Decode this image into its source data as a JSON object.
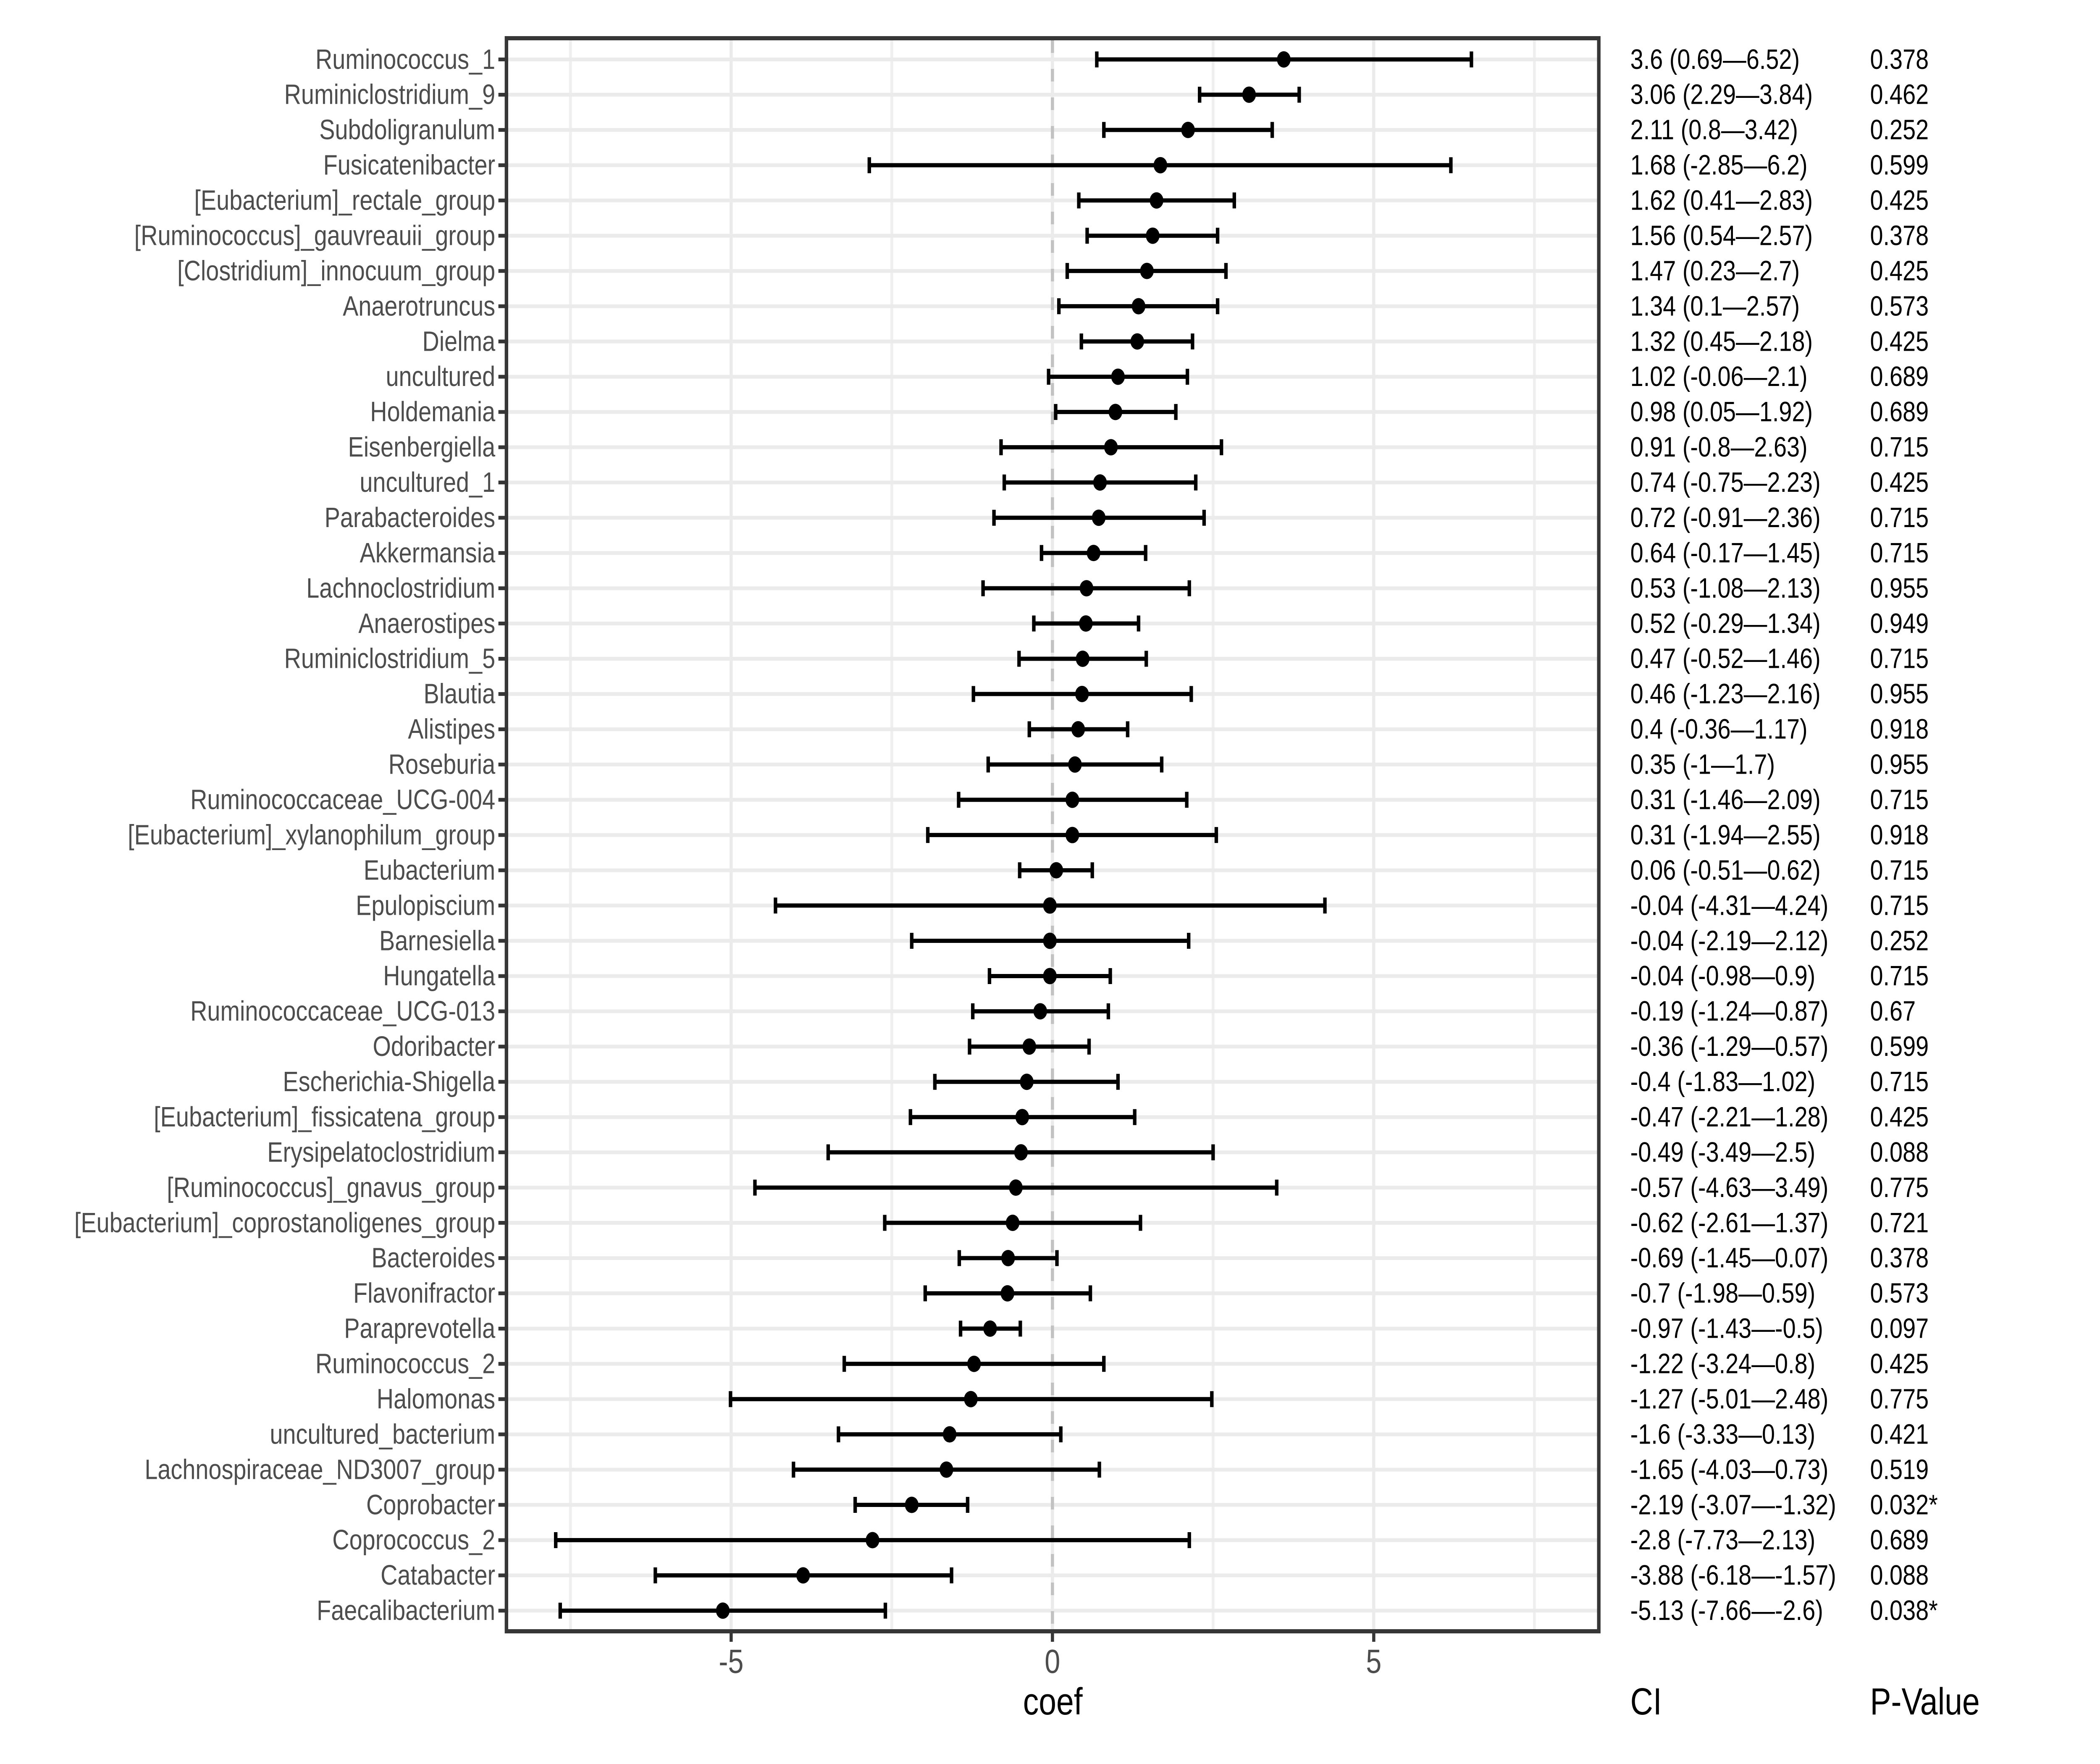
{
  "chart_data": {
    "type": "scatter",
    "variant": "forest-plot",
    "title": "",
    "xlabel": "coef",
    "ci_header": "CI",
    "p_header": "P-Value",
    "x_ticks": [
      -5,
      0,
      5
    ],
    "x_minor_ticks": [
      -7.5,
      -2.5,
      2.5,
      7.5
    ],
    "xlim": [
      -8.51,
      8.51
    ],
    "zero_line": 0,
    "grid": "on",
    "rows": [
      {
        "label": "Ruminococcus_1",
        "coef": 3.6,
        "ci_low": 0.69,
        "ci_high": 6.52,
        "ci_text": "3.6 (0.69—6.52)",
        "p_text": "0.378"
      },
      {
        "label": "Ruminiclostridium_9",
        "coef": 3.06,
        "ci_low": 2.29,
        "ci_high": 3.84,
        "ci_text": "3.06 (2.29—3.84)",
        "p_text": "0.462"
      },
      {
        "label": "Subdoligranulum",
        "coef": 2.11,
        "ci_low": 0.8,
        "ci_high": 3.42,
        "ci_text": "2.11 (0.8—3.42)",
        "p_text": "0.252"
      },
      {
        "label": "Fusicatenibacter",
        "coef": 1.68,
        "ci_low": -2.85,
        "ci_high": 6.2,
        "ci_text": "1.68 (-2.85—6.2)",
        "p_text": "0.599"
      },
      {
        "label": "[Eubacterium]_rectale_group",
        "coef": 1.62,
        "ci_low": 0.41,
        "ci_high": 2.83,
        "ci_text": "1.62 (0.41—2.83)",
        "p_text": "0.425"
      },
      {
        "label": "[Ruminococcus]_gauvreauii_group",
        "coef": 1.56,
        "ci_low": 0.54,
        "ci_high": 2.57,
        "ci_text": "1.56 (0.54—2.57)",
        "p_text": "0.378"
      },
      {
        "label": "[Clostridium]_innocuum_group",
        "coef": 1.47,
        "ci_low": 0.23,
        "ci_high": 2.7,
        "ci_text": "1.47 (0.23—2.7)",
        "p_text": "0.425"
      },
      {
        "label": "Anaerotruncus",
        "coef": 1.34,
        "ci_low": 0.1,
        "ci_high": 2.57,
        "ci_text": "1.34 (0.1—2.57)",
        "p_text": "0.573"
      },
      {
        "label": "Dielma",
        "coef": 1.32,
        "ci_low": 0.45,
        "ci_high": 2.18,
        "ci_text": "1.32 (0.45—2.18)",
        "p_text": "0.425"
      },
      {
        "label": "uncultured",
        "coef": 1.02,
        "ci_low": -0.06,
        "ci_high": 2.1,
        "ci_text": "1.02 (-0.06—2.1)",
        "p_text": "0.689"
      },
      {
        "label": "Holdemania",
        "coef": 0.98,
        "ci_low": 0.05,
        "ci_high": 1.92,
        "ci_text": "0.98 (0.05—1.92)",
        "p_text": "0.689"
      },
      {
        "label": "Eisenbergiella",
        "coef": 0.91,
        "ci_low": -0.8,
        "ci_high": 2.63,
        "ci_text": "0.91 (-0.8—2.63)",
        "p_text": "0.715"
      },
      {
        "label": "uncultured_1",
        "coef": 0.74,
        "ci_low": -0.75,
        "ci_high": 2.23,
        "ci_text": "0.74 (-0.75—2.23)",
        "p_text": "0.425"
      },
      {
        "label": "Parabacteroides",
        "coef": 0.72,
        "ci_low": -0.91,
        "ci_high": 2.36,
        "ci_text": "0.72 (-0.91—2.36)",
        "p_text": "0.715"
      },
      {
        "label": "Akkermansia",
        "coef": 0.64,
        "ci_low": -0.17,
        "ci_high": 1.45,
        "ci_text": "0.64 (-0.17—1.45)",
        "p_text": "0.715"
      },
      {
        "label": "Lachnoclostridium",
        "coef": 0.53,
        "ci_low": -1.08,
        "ci_high": 2.13,
        "ci_text": "0.53 (-1.08—2.13)",
        "p_text": "0.955"
      },
      {
        "label": "Anaerostipes",
        "coef": 0.52,
        "ci_low": -0.29,
        "ci_high": 1.34,
        "ci_text": "0.52 (-0.29—1.34)",
        "p_text": "0.949"
      },
      {
        "label": "Ruminiclostridium_5",
        "coef": 0.47,
        "ci_low": -0.52,
        "ci_high": 1.46,
        "ci_text": "0.47 (-0.52—1.46)",
        "p_text": "0.715"
      },
      {
        "label": "Blautia",
        "coef": 0.46,
        "ci_low": -1.23,
        "ci_high": 2.16,
        "ci_text": "0.46 (-1.23—2.16)",
        "p_text": "0.955"
      },
      {
        "label": "Alistipes",
        "coef": 0.4,
        "ci_low": -0.36,
        "ci_high": 1.17,
        "ci_text": "0.4 (-0.36—1.17)",
        "p_text": "0.918"
      },
      {
        "label": "Roseburia",
        "coef": 0.35,
        "ci_low": -1,
        "ci_high": 1.7,
        "ci_text": "0.35 (-1—1.7)",
        "p_text": "0.955"
      },
      {
        "label": "Ruminococcaceae_UCG-004",
        "coef": 0.31,
        "ci_low": -1.46,
        "ci_high": 2.09,
        "ci_text": "0.31 (-1.46—2.09)",
        "p_text": "0.715"
      },
      {
        "label": "[Eubacterium]_xylanophilum_group",
        "coef": 0.31,
        "ci_low": -1.94,
        "ci_high": 2.55,
        "ci_text": "0.31 (-1.94—2.55)",
        "p_text": "0.918"
      },
      {
        "label": "Eubacterium",
        "coef": 0.06,
        "ci_low": -0.51,
        "ci_high": 0.62,
        "ci_text": "0.06 (-0.51—0.62)",
        "p_text": "0.715"
      },
      {
        "label": "Epulopiscium",
        "coef": -0.04,
        "ci_low": -4.31,
        "ci_high": 4.24,
        "ci_text": "-0.04 (-4.31—4.24)",
        "p_text": "0.715"
      },
      {
        "label": "Barnesiella",
        "coef": -0.04,
        "ci_low": -2.19,
        "ci_high": 2.12,
        "ci_text": "-0.04 (-2.19—2.12)",
        "p_text": "0.252"
      },
      {
        "label": "Hungatella",
        "coef": -0.04,
        "ci_low": -0.98,
        "ci_high": 0.9,
        "ci_text": "-0.04 (-0.98—0.9)",
        "p_text": "0.715"
      },
      {
        "label": "Ruminococcaceae_UCG-013",
        "coef": -0.19,
        "ci_low": -1.24,
        "ci_high": 0.87,
        "ci_text": "-0.19 (-1.24—0.87)",
        "p_text": "0.67"
      },
      {
        "label": "Odoribacter",
        "coef": -0.36,
        "ci_low": -1.29,
        "ci_high": 0.57,
        "ci_text": "-0.36 (-1.29—0.57)",
        "p_text": "0.599"
      },
      {
        "label": "Escherichia-Shigella",
        "coef": -0.4,
        "ci_low": -1.83,
        "ci_high": 1.02,
        "ci_text": "-0.4 (-1.83—1.02)",
        "p_text": "0.715"
      },
      {
        "label": "[Eubacterium]_fissicatena_group",
        "coef": -0.47,
        "ci_low": -2.21,
        "ci_high": 1.28,
        "ci_text": "-0.47 (-2.21—1.28)",
        "p_text": "0.425"
      },
      {
        "label": "Erysipelatoclostridium",
        "coef": -0.49,
        "ci_low": -3.49,
        "ci_high": 2.5,
        "ci_text": "-0.49 (-3.49—2.5)",
        "p_text": "0.088"
      },
      {
        "label": "[Ruminococcus]_gnavus_group",
        "coef": -0.57,
        "ci_low": -4.63,
        "ci_high": 3.49,
        "ci_text": "-0.57 (-4.63—3.49)",
        "p_text": "0.775"
      },
      {
        "label": "[Eubacterium]_coprostanoligenes_group",
        "coef": -0.62,
        "ci_low": -2.61,
        "ci_high": 1.37,
        "ci_text": "-0.62 (-2.61—1.37)",
        "p_text": "0.721"
      },
      {
        "label": "Bacteroides",
        "coef": -0.69,
        "ci_low": -1.45,
        "ci_high": 0.07,
        "ci_text": "-0.69 (-1.45—0.07)",
        "p_text": "0.378"
      },
      {
        "label": "Flavonifractor",
        "coef": -0.7,
        "ci_low": -1.98,
        "ci_high": 0.59,
        "ci_text": "-0.7 (-1.98—0.59)",
        "p_text": "0.573"
      },
      {
        "label": "Paraprevotella",
        "coef": -0.97,
        "ci_low": -1.43,
        "ci_high": -0.5,
        "ci_text": "-0.97 (-1.43—-0.5)",
        "p_text": "0.097"
      },
      {
        "label": "Ruminococcus_2",
        "coef": -1.22,
        "ci_low": -3.24,
        "ci_high": 0.8,
        "ci_text": "-1.22 (-3.24—0.8)",
        "p_text": "0.425"
      },
      {
        "label": "Halomonas",
        "coef": -1.27,
        "ci_low": -5.01,
        "ci_high": 2.48,
        "ci_text": "-1.27 (-5.01—2.48)",
        "p_text": "0.775"
      },
      {
        "label": "uncultured_bacterium",
        "coef": -1.6,
        "ci_low": -3.33,
        "ci_high": 0.13,
        "ci_text": "-1.6 (-3.33—0.13)",
        "p_text": "0.421"
      },
      {
        "label": "Lachnospiraceae_ND3007_group",
        "coef": -1.65,
        "ci_low": -4.03,
        "ci_high": 0.73,
        "ci_text": "-1.65 (-4.03—0.73)",
        "p_text": "0.519"
      },
      {
        "label": "Coprobacter",
        "coef": -2.19,
        "ci_low": -3.07,
        "ci_high": -1.32,
        "ci_text": "-2.19 (-3.07—-1.32)",
        "p_text": "0.032*"
      },
      {
        "label": "Coprococcus_2",
        "coef": -2.8,
        "ci_low": -7.73,
        "ci_high": 2.13,
        "ci_text": "-2.8 (-7.73—2.13)",
        "p_text": "0.689"
      },
      {
        "label": "Catabacter",
        "coef": -3.88,
        "ci_low": -6.18,
        "ci_high": -1.57,
        "ci_text": "-3.88 (-6.18—-1.57)",
        "p_text": "0.088"
      },
      {
        "label": "Faecalibacterium",
        "coef": -5.13,
        "ci_low": -7.66,
        "ci_high": -2.6,
        "ci_text": "-5.13 (-7.66—-2.6)",
        "p_text": "0.038*"
      }
    ],
    "colors": {
      "point": "#000000",
      "error_bar": "#000000",
      "grid_major": "#ebebeb",
      "grid_minor": "#efefef",
      "zero_dash": "#c2c2c2",
      "panel_border": "#363636",
      "axis_text": "#4d4d4d",
      "annotation_text": "#000000",
      "background": "#ffffff"
    }
  }
}
